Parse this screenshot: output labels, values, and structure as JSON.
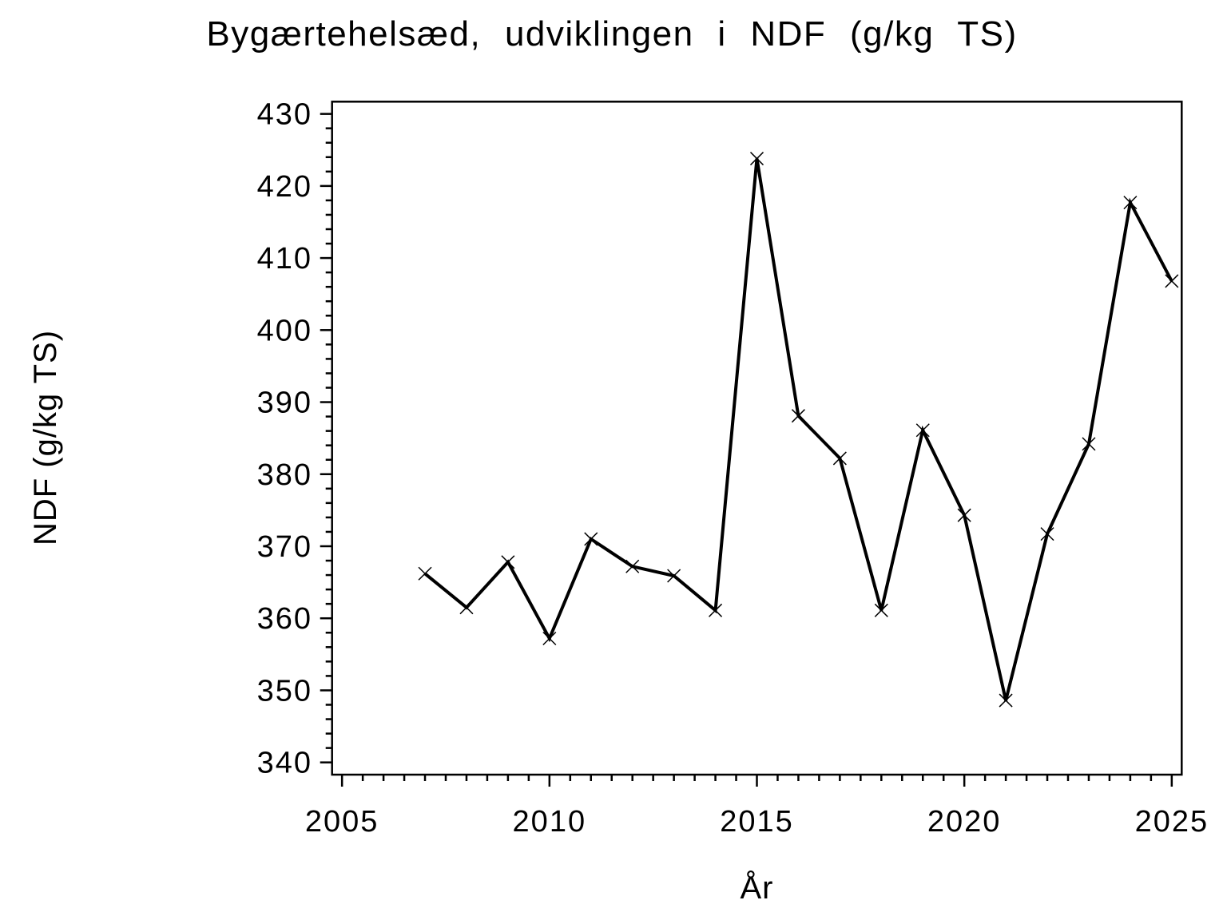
{
  "page": {
    "background": "#ffffff",
    "ink_color": "#000000"
  },
  "chart_data": {
    "type": "line",
    "title": "Bygærtehelsæd, udviklingen i NDF (g/kg TS)",
    "xlabel": "År",
    "ylabel": "NDF (g/kg TS)",
    "legend": null,
    "grid": false,
    "marker": "x",
    "line_color": "#000000",
    "marker_color": "#000000",
    "x": [
      2007,
      2008,
      2009,
      2010,
      2011,
      2012,
      2013,
      2014,
      2015,
      2016,
      2017,
      2018,
      2019,
      2020,
      2021,
      2022,
      2023,
      2024,
      2025
    ],
    "values": [
      366.2,
      361.5,
      367.8,
      357.2,
      371.0,
      367.2,
      365.9,
      361.1,
      423.8,
      388.1,
      382.2,
      361.1,
      386.1,
      374.3,
      348.6,
      371.7,
      384.2,
      417.7,
      406.8
    ],
    "xlim": [
      2004.76,
      2025.24
    ],
    "ylim": [
      338.3,
      431.7
    ],
    "xticks": [
      2005,
      2010,
      2015,
      2020,
      2025
    ],
    "yticks": [
      340,
      350,
      360,
      370,
      380,
      390,
      400,
      410,
      420,
      430
    ],
    "x_minor_step": 0.5,
    "y_minor_step": 2
  }
}
